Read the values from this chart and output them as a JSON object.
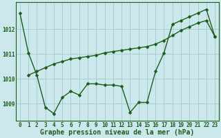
{
  "xlabel": "Graphe pression niveau de la mer (hPa)",
  "bg_color": "#cce8ec",
  "grid_color": "#aacccc",
  "line_color": "#1a5c1a",
  "x_ticks": [
    0,
    1,
    2,
    3,
    4,
    5,
    6,
    7,
    8,
    9,
    10,
    11,
    12,
    13,
    14,
    15,
    16,
    17,
    18,
    19,
    20,
    21,
    22,
    23
  ],
  "ylim": [
    1008.3,
    1013.1
  ],
  "yticks": [
    1009,
    1010,
    1011,
    1012
  ],
  "jagged_x": [
    0,
    1,
    2,
    3,
    4,
    5,
    6,
    7,
    8,
    9,
    10,
    11,
    12,
    13,
    14,
    15,
    16,
    17,
    18,
    19,
    20,
    21,
    22,
    23
  ],
  "jagged_y": [
    1012.65,
    1011.05,
    1010.15,
    1008.85,
    1008.6,
    1009.25,
    1009.5,
    1009.35,
    1009.8,
    1009.8,
    1009.75,
    1009.75,
    1009.7,
    1008.65,
    1009.05,
    1009.05,
    1010.3,
    1011.05,
    1012.2,
    1012.35,
    1012.5,
    1012.65,
    1012.8,
    1011.7
  ],
  "smooth_x": [
    1,
    2,
    3,
    4,
    5,
    6,
    7,
    8,
    9,
    10,
    11,
    12,
    13,
    14,
    15,
    16,
    17,
    18,
    19,
    20,
    21,
    22,
    23
  ],
  "smooth_y": [
    1010.15,
    1010.3,
    1010.45,
    1010.6,
    1010.7,
    1010.8,
    1010.85,
    1010.9,
    1010.95,
    1011.05,
    1011.1,
    1011.15,
    1011.2,
    1011.25,
    1011.3,
    1011.4,
    1011.55,
    1011.75,
    1011.95,
    1012.1,
    1012.25,
    1012.35,
    1011.7
  ],
  "marker_size": 2.5,
  "line_width": 1.0,
  "xlabel_fontsize": 7,
  "tick_fontsize": 5.5
}
